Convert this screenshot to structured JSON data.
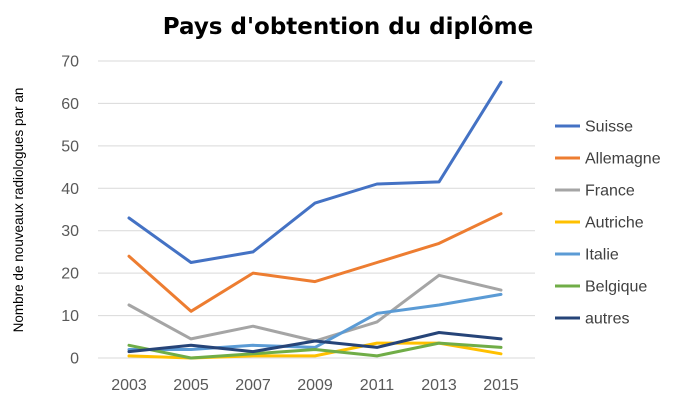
{
  "chart_data": {
    "type": "line",
    "title": "Pays d'obtention du diplôme",
    "xlabel": "",
    "ylabel": "Nombre de nouveaux radiologues par an",
    "categories": [
      "2003",
      "2005",
      "2007",
      "2009",
      "2011",
      "2013",
      "2015"
    ],
    "y_ticks": [
      "0",
      "10",
      "20",
      "30",
      "40",
      "50",
      "60",
      "70"
    ],
    "ylim": [
      0,
      70
    ],
    "grid": "horizontal",
    "legend_position": "right",
    "series": [
      {
        "name": "Suisse",
        "color": "#4472C4",
        "values": [
          33,
          22.5,
          25,
          36.5,
          41,
          41.5,
          65
        ]
      },
      {
        "name": "Allemagne",
        "color": "#ED7D31",
        "values": [
          24,
          11,
          20,
          18,
          22.5,
          27,
          34
        ]
      },
      {
        "name": "France",
        "color": "#A5A5A5",
        "values": [
          12.5,
          4.5,
          7.5,
          4,
          8.5,
          19.5,
          16
        ]
      },
      {
        "name": "Autriche",
        "color": "#FFC000",
        "values": [
          0.5,
          0,
          0.5,
          0.5,
          3.5,
          3.5,
          1
        ]
      },
      {
        "name": "Italie",
        "color": "#5B9BD5",
        "values": [
          2,
          2,
          3,
          2.5,
          10.5,
          12.5,
          15
        ]
      },
      {
        "name": "Belgique",
        "color": "#70AD47",
        "values": [
          3,
          0,
          1,
          2,
          0.5,
          3.5,
          2.5
        ]
      },
      {
        "name": "autres",
        "color": "#264478",
        "values": [
          1.5,
          3,
          1.5,
          4,
          2.5,
          6,
          4.5
        ]
      }
    ]
  }
}
